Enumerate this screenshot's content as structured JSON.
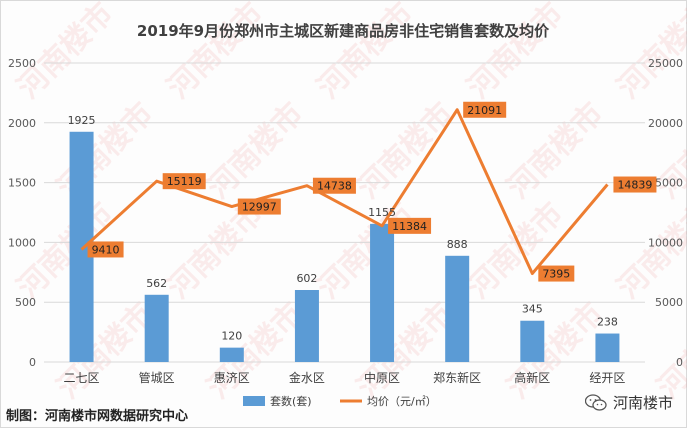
{
  "chart_data": {
    "type": "bar",
    "title": "2019年9月份郑州市主城区新建商品房非住宅销售套数及均价",
    "categories": [
      "二七区",
      "管城区",
      "惠济区",
      "金水区",
      "中原区",
      "郑东新区",
      "高新区",
      "经开区"
    ],
    "series": [
      {
        "name": "套数(套)",
        "type": "bar",
        "axis": "left",
        "values": [
          1925,
          562,
          120,
          602,
          1155,
          888,
          345,
          238
        ]
      },
      {
        "name": "均价（元/㎡）",
        "type": "line",
        "axis": "right",
        "values": [
          9410,
          15119,
          12997,
          14738,
          11384,
          21091,
          7395,
          14839
        ]
      }
    ],
    "y_left": {
      "min": 0,
      "max": 2500,
      "ticks": [
        0,
        500,
        1000,
        1500,
        2000,
        2500
      ]
    },
    "y_right": {
      "min": 0,
      "max": 25000,
      "ticks": [
        0,
        5000,
        10000,
        15000,
        20000,
        25000
      ]
    },
    "grid": true,
    "legend": "bottom",
    "colors": {
      "bar": "#5b9bd5",
      "line": "#ed7d31",
      "label_bg": "#ed7d31",
      "grid": "#d9d9d9",
      "axis_text": "#595959"
    }
  },
  "footer": {
    "credit": "制图：河南楼市网数据研究中心",
    "brand": "河南楼市"
  },
  "watermark_text": "河南楼市"
}
